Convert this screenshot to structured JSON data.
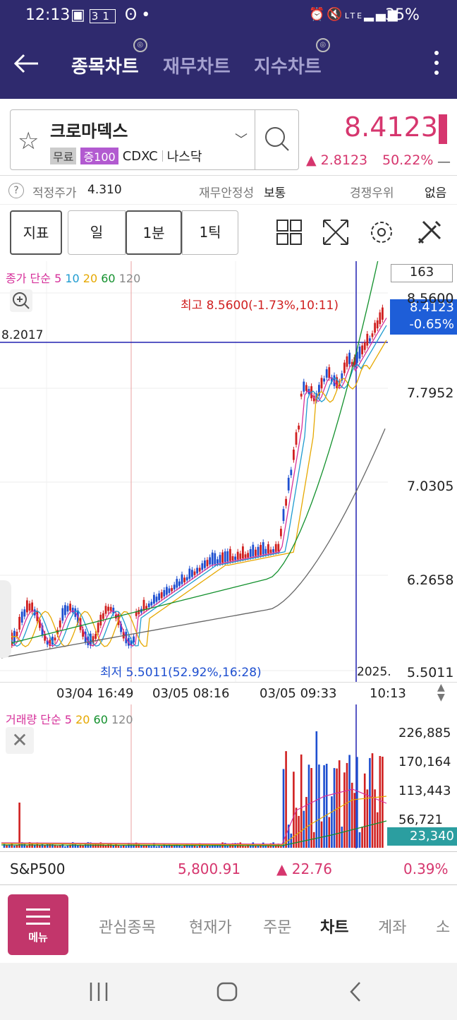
{
  "status_bar": {
    "time": "12:13",
    "calendar_date": "31",
    "battery": "35%",
    "network": "LTE"
  },
  "header": {
    "tabs": [
      {
        "label": "종목차트",
        "active": true
      },
      {
        "label": "재무차트",
        "active": false
      },
      {
        "label": "지수차트",
        "active": false
      }
    ]
  },
  "stock": {
    "name": "크로마덱스",
    "tag_free": "무료",
    "tag_margin": "증100",
    "ticker": "CDXC",
    "market": "나스닥",
    "price": "8.4123",
    "change": "▲ 2.8123",
    "change_pct": "50.22%",
    "dash": "—"
  },
  "info": {
    "fair_price_label": "적정주가",
    "fair_price": "4.310",
    "stability_label": "재무안정성",
    "stability": "보통",
    "competitive_label": "경쟁우위",
    "competitive": "없음",
    "help": "?"
  },
  "toolbar": {
    "indicator": "지표",
    "day": "일",
    "minute": "1분",
    "tick": "1틱"
  },
  "chart": {
    "legend_prefix": "종가 단순",
    "ma": [
      "5",
      "10",
      "20",
      "60",
      "120"
    ],
    "count_box": "163",
    "high_note": "최고 8.5600(-1.73%,10:11)",
    "low_note": "최저 5.5011(52.92%,16:28)",
    "crosshair_value": "8.2017",
    "current_price": "8.4123",
    "current_pct": "-0.65%",
    "year_label": "2025.",
    "y_ticks": [
      "8.5600",
      "7.7952",
      "7.0305",
      "6.2658",
      "5.5011"
    ],
    "x_ticks": [
      "03/04 16:49",
      "03/05 08:16",
      "03/05 09:33",
      "10:13"
    ]
  },
  "volume": {
    "legend_prefix": "거래량 단순",
    "ma": [
      "5",
      "20",
      "60",
      "120"
    ],
    "y_ticks": [
      "226,885",
      "170,164",
      "113,443",
      "56,721"
    ],
    "current": "23,340"
  },
  "index_bar": {
    "name": "S&P500",
    "value": "5,800.91",
    "change": "▲ 22.76",
    "pct": "0.39%"
  },
  "bottom_nav": {
    "menu": "메뉴",
    "items": [
      "관심종목",
      "현재가",
      "주문",
      "차트",
      "계좌",
      "소"
    ]
  },
  "colors": {
    "header_bg": "#2f2a6e",
    "up": "#d6366e",
    "down": "#1e4fd0",
    "accent": "#c2366b"
  }
}
